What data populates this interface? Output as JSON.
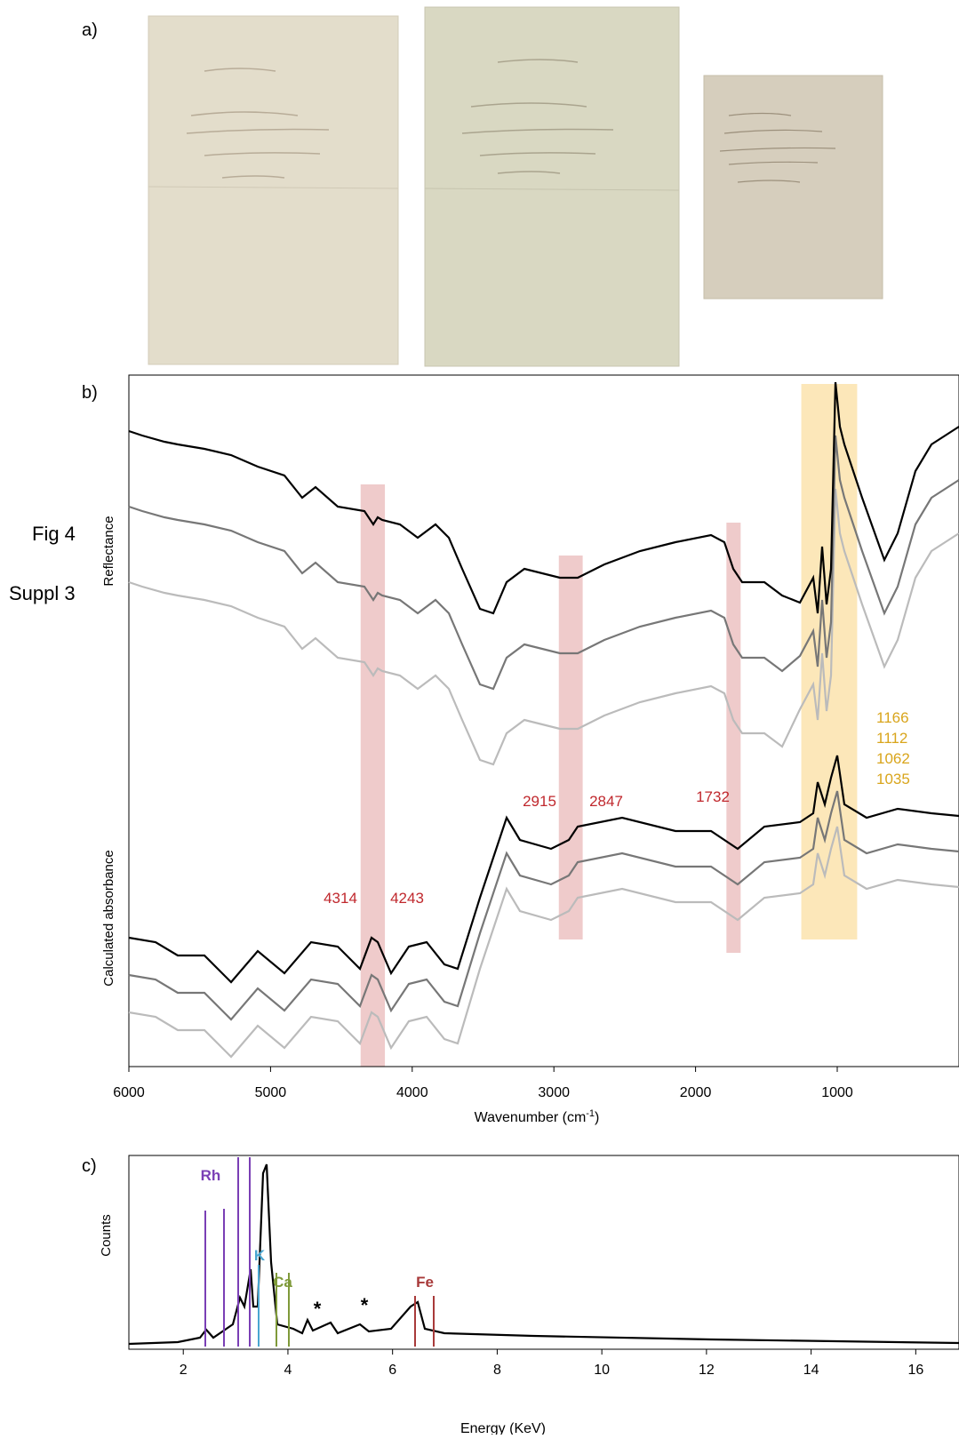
{
  "side_labels": {
    "fig": "Fig 4",
    "suppl": "Suppl 3"
  },
  "panel_a": {
    "label": "a)"
  },
  "panel_b": {
    "label": "b)",
    "xlabel": "Wavenumber (cm",
    "xlabel_sup": "-1",
    "xlabel_end": ")",
    "ylabel_top": "Reflectance",
    "ylabel_bottom": "Calculated absorbance",
    "xlim": [
      6000,
      335
    ],
    "xticks": [
      6000,
      5000,
      4000,
      3000,
      2000,
      1000
    ],
    "red_bands": [
      [
        4314,
        4243
      ],
      [
        2915,
        2847
      ],
      [
        1732
      ]
    ],
    "yellow_band": [
      1166,
      1112,
      1062,
      1035
    ]
  },
  "panel_c": {
    "label": "c)",
    "xlabel": "Energy (KeV)",
    "ylabel": "Counts",
    "xlim": [
      0.96,
      16.3
    ],
    "xticks": [
      2,
      4,
      6,
      8,
      10,
      12,
      14,
      16
    ],
    "elements": [
      "Rh",
      "K",
      "Ca",
      "Fe"
    ],
    "markers": [
      "*",
      "*"
    ]
  }
}
